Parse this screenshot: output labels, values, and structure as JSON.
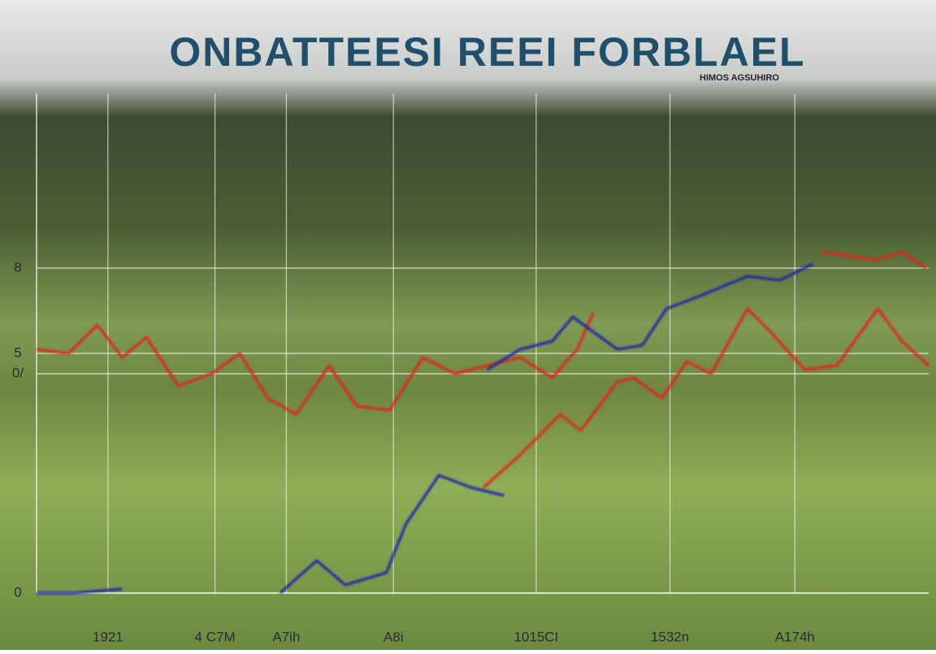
{
  "chart_data": {
    "type": "line",
    "title": "ONBATTEESI REEI FORBLAEL",
    "subtitle": "HIMOS AGSUHIRO",
    "xlim": [
      0,
      100
    ],
    "xticks": [
      {
        "value": 8,
        "label": "1921"
      },
      {
        "value": 20,
        "label": "4 C7M"
      },
      {
        "value": 28,
        "label": "A7ih"
      },
      {
        "value": 40,
        "label": "A8i"
      },
      {
        "value": 56,
        "label": "1015CI"
      },
      {
        "value": 71,
        "label": "1532n"
      },
      {
        "value": 85,
        "label": "A174h"
      }
    ],
    "ylim": [
      0,
      12.3
    ],
    "yticks": [
      0,
      {
        "value": 5.4,
        "label": "0/"
      },
      {
        "value": 5.9,
        "label": "5"
      },
      8
    ],
    "grid": true,
    "series": [
      {
        "color": "#e3231c",
        "x": [
          0,
          3.6,
          6.8,
          9.6,
          12.3,
          15.9,
          19.6,
          22.8,
          25.9,
          29.1,
          32.8,
          35.9,
          39.6,
          43.3,
          46.9,
          50.5,
          54.2,
          57.8,
          60.6,
          62.4
        ],
        "values": [
          6.0,
          5.9,
          6.6,
          5.8,
          6.3,
          5.1,
          5.4,
          5.9,
          4.8,
          4.4,
          5.6,
          4.6,
          4.5,
          5.8,
          5.4,
          5.6,
          5.8,
          5.3,
          6.0,
          6.9
        ]
      },
      {
        "color": "#e3231c",
        "x": [
          50.1,
          54.2,
          58.7,
          61.0,
          65.1,
          66.9,
          70.1,
          72.9,
          75.6,
          79.7,
          82.4,
          86.1,
          89.7,
          94.3,
          97.0,
          100,
          null,
          87.9,
          94.3,
          97.0,
          99.7
        ],
        "values": [
          2.6,
          3.4,
          4.4,
          4.0,
          5.2,
          5.3,
          4.8,
          5.7,
          5.4,
          7.0,
          6.4,
          5.5,
          5.6,
          7.0,
          6.2,
          5.6,
          null,
          8.4,
          8.2,
          8.4,
          8.0
        ]
      },
      {
        "color": "#1b24b0",
        "x": [
          0,
          4.1,
          9.6,
          null,
          27.3,
          31.4,
          34.6,
          39.2,
          41.4,
          45.1,
          48.7,
          52.4,
          null,
          50.5,
          54.2,
          57.8,
          60.1,
          65.1,
          67.9,
          70.6,
          74.2,
          79.7,
          83.3,
          87.0
        ],
        "values": [
          0,
          0,
          0.1,
          null,
          0,
          0.8,
          0.2,
          0.5,
          1.7,
          2.9,
          2.6,
          2.4,
          null,
          5.5,
          6.0,
          6.2,
          6.8,
          6.0,
          6.1,
          7.0,
          7.3,
          7.8,
          7.7,
          8.1
        ]
      }
    ]
  }
}
